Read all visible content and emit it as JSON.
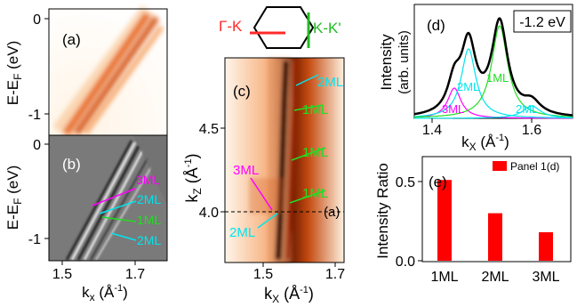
{
  "panels": {
    "a": {
      "tag": "(a)",
      "ylabel_main": "E-E",
      "ylabel_sub": "F",
      "ylabel_unit": " (eV)",
      "yticks": [
        "0",
        "-1"
      ]
    },
    "b": {
      "tag": "(b)",
      "ylabel_main": "E-E",
      "ylabel_sub": "F",
      "ylabel_unit": " (eV)",
      "yticks": [
        "0",
        "-1"
      ],
      "xticks": [
        "1.5",
        "1.7"
      ],
      "xlabel_main": "k",
      "xlabel_sub": "x",
      "xlabel_unit_a": " (Å",
      "xlabel_unit_sup": "-1",
      "xlabel_unit_b": ")",
      "labels": [
        {
          "text": "3ML",
          "color": "#ff00ff"
        },
        {
          "text": "2ML",
          "color": "#00e5ee"
        },
        {
          "text": "1ML",
          "color": "#22dd22"
        },
        {
          "text": "2ML",
          "color": "#00e5ee"
        }
      ]
    },
    "c": {
      "tag": "(c)",
      "ylabel_main": "k",
      "ylabel_sub": "Z",
      "ylabel_unit_a": " (Å",
      "ylabel_unit_sup": "-1",
      "ylabel_unit_b": ")",
      "yticks": [
        "4.5",
        "4.0"
      ],
      "xticks": [
        "1.5",
        "1.7"
      ],
      "xlabel_main": "k",
      "xlabel_sub": "X",
      "xlabel_unit_a": " (Å",
      "xlabel_unit_sup": "-1",
      "xlabel_unit_b": ")",
      "cut_label": "(a)",
      "labels": [
        {
          "text": "2ML",
          "color": "#00e5ee"
        },
        {
          "text": "1ML",
          "color": "#22dd22"
        },
        {
          "text": "1ML",
          "color": "#22dd22"
        },
        {
          "text": "1ML",
          "color": "#22dd22"
        },
        {
          "text": "3ML",
          "color": "#ff00ff"
        },
        {
          "text": "2ML",
          "color": "#00e5ee"
        }
      ],
      "bz": {
        "gk_label": "Γ-K",
        "gk_color": "#ff2a2a",
        "kk_label": "K-K'",
        "kk_color": "#22bb22"
      }
    },
    "d": {
      "tag": "(d)",
      "energy_box": "-1.2 eV",
      "ylabel_line1": "Intensity",
      "ylabel_line2": "(arb. units)",
      "xticks": [
        "1.4",
        "1.6"
      ],
      "xlabel_main": "k",
      "xlabel_sub": "X",
      "xlabel_unit_a": " (Å",
      "xlabel_unit_sup": "-1",
      "xlabel_unit_b": ")",
      "labels": [
        {
          "text": "1ML",
          "color": "#22dd22"
        },
        {
          "text": "2ML",
          "color": "#00e5ee"
        },
        {
          "text": "3ML",
          "color": "#ff00ff"
        },
        {
          "text": "2ML",
          "color": "#00e5ee"
        }
      ],
      "colors": {
        "total": "#000000",
        "ml1": "#22dd22",
        "ml2": "#00e5ee",
        "ml3": "#ff00ff"
      }
    },
    "e": {
      "tag": "(e)",
      "ylabel": "Intensity Ratio",
      "legend": "Panel 1(d)",
      "bar_color": "#ff0000"
    }
  },
  "chart_data": {
    "type": "bar",
    "categories": [
      "1ML",
      "2ML",
      "3ML"
    ],
    "series": [
      {
        "name": "Panel 1(d)",
        "values": [
          0.51,
          0.3,
          0.18
        ]
      }
    ],
    "ylabel": "Intensity Ratio",
    "ylim": [
      0,
      0.6
    ],
    "yticks": [
      "0.0",
      "0.5"
    ]
  }
}
